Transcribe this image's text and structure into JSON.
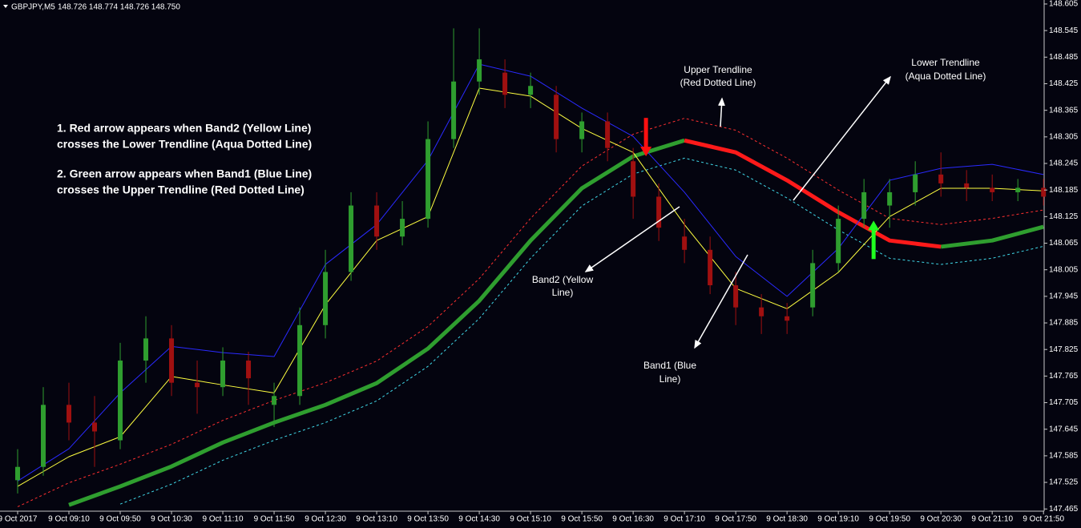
{
  "chart_data": {
    "type": "candlestick",
    "symbol": "GBPJPY,M5",
    "quote": "148.726 148.774 148.726 148.750",
    "ylim": [
      147.46,
      148.614
    ],
    "yticks": [
      148.605,
      148.545,
      148.485,
      148.425,
      148.365,
      148.305,
      148.245,
      148.185,
      148.125,
      148.065,
      148.005,
      147.945,
      147.885,
      147.825,
      147.765,
      147.705,
      147.645,
      147.585,
      147.525,
      147.465
    ],
    "xlim": [
      -2.75,
      160.1
    ],
    "xticks": [
      {
        "value": 0,
        "label": "9 Oct 2017"
      },
      {
        "value": 8,
        "label": "9 Oct 09:10"
      },
      {
        "value": 16,
        "label": "9 Oct 09:50"
      },
      {
        "value": 24,
        "label": "9 Oct 10:30"
      },
      {
        "value": 32,
        "label": "9 Oct 11:10"
      },
      {
        "value": 40,
        "label": "9 Oct 11:50"
      },
      {
        "value": 48,
        "label": "9 Oct 12:30"
      },
      {
        "value": 56,
        "label": "9 Oct 13:10"
      },
      {
        "value": 64,
        "label": "9 Oct 13:50"
      },
      {
        "value": 72,
        "label": "9 Oct 14:30"
      },
      {
        "value": 80,
        "label": "9 Oct 15:10"
      },
      {
        "value": 88,
        "label": "9 Oct 15:50"
      },
      {
        "value": 96,
        "label": "9 Oct 16:30"
      },
      {
        "value": 104,
        "label": "9 Oct 17:10"
      },
      {
        "value": 112,
        "label": "9 Oct 17:50"
      },
      {
        "value": 120,
        "label": "9 Oct 18:30"
      },
      {
        "value": 128,
        "label": "9 Oct 19:10"
      },
      {
        "value": 136,
        "label": "9 Oct 19:50"
      },
      {
        "value": 144,
        "label": "9 Oct 20:30"
      },
      {
        "value": 152,
        "label": "9 Oct 21:10"
      },
      {
        "value": 160,
        "label": "9 Oct 21:50"
      }
    ],
    "candles": {
      "up_color": "#2f9e2f",
      "down_color": "#a01010",
      "x": [
        0,
        4,
        8,
        12,
        16,
        20,
        24,
        28,
        32,
        36,
        40,
        44,
        48,
        52,
        56,
        60,
        64,
        68,
        72,
        76,
        80,
        84,
        88,
        92,
        96,
        100,
        104,
        108,
        112,
        116,
        120,
        124,
        128,
        132,
        136,
        140,
        144,
        148,
        152,
        156,
        160
      ],
      "open": [
        147.53,
        147.56,
        147.7,
        147.66,
        147.62,
        147.8,
        147.85,
        147.75,
        147.74,
        147.8,
        147.7,
        147.72,
        147.88,
        148.0,
        148.15,
        148.08,
        148.12,
        148.3,
        148.43,
        148.45,
        148.4,
        148.4,
        148.3,
        148.34,
        148.25,
        148.17,
        148.08,
        148.05,
        147.97,
        147.92,
        147.9,
        147.92,
        148.02,
        148.12,
        148.15,
        148.18,
        148.22,
        148.2,
        148.19,
        148.18,
        148.19
      ],
      "high": [
        147.6,
        147.74,
        147.75,
        147.72,
        147.84,
        147.9,
        147.88,
        147.8,
        147.83,
        147.82,
        147.75,
        147.92,
        148.05,
        148.18,
        148.18,
        148.16,
        148.34,
        148.55,
        148.55,
        148.48,
        148.45,
        148.42,
        148.36,
        148.36,
        148.28,
        148.2,
        148.12,
        148.08,
        148.0,
        147.95,
        147.93,
        148.05,
        148.15,
        148.21,
        148.21,
        148.25,
        148.27,
        148.23,
        148.22,
        148.21,
        148.21
      ],
      "low": [
        147.5,
        147.54,
        147.62,
        147.56,
        147.6,
        147.75,
        147.72,
        147.68,
        147.72,
        147.7,
        147.65,
        147.7,
        147.85,
        147.98,
        148.05,
        148.06,
        148.1,
        148.28,
        148.4,
        148.37,
        148.37,
        148.27,
        148.27,
        148.25,
        148.12,
        148.07,
        148.02,
        147.95,
        147.88,
        147.86,
        147.86,
        147.9,
        148.0,
        148.1,
        148.1,
        148.15,
        148.17,
        148.16,
        148.16,
        148.16,
        148.15
      ],
      "close": [
        147.56,
        147.7,
        147.66,
        147.64,
        147.8,
        147.85,
        147.75,
        147.74,
        147.8,
        147.76,
        147.72,
        147.88,
        148.0,
        148.15,
        148.08,
        148.12,
        148.3,
        148.43,
        148.48,
        148.4,
        148.42,
        148.3,
        148.34,
        148.28,
        148.17,
        148.1,
        148.05,
        147.97,
        147.92,
        147.9,
        147.89,
        148.02,
        148.12,
        148.18,
        148.18,
        148.22,
        148.2,
        148.19,
        148.18,
        148.19,
        148.17
      ]
    },
    "x": [
      0,
      8,
      16,
      24,
      32,
      40,
      48,
      56,
      64,
      72,
      80,
      88,
      96,
      104,
      112,
      120,
      128,
      136,
      144,
      152,
      160
    ],
    "series": [
      {
        "color": "#ff3030",
        "style": "dotted",
        "width": 1,
        "values": [
          147.47,
          147.524,
          147.566,
          147.611,
          147.665,
          147.71,
          147.75,
          147.799,
          147.877,
          147.985,
          148.121,
          148.239,
          148.311,
          148.347,
          148.32,
          148.257,
          148.185,
          148.121,
          148.107,
          148.121,
          148.14
        ]
      },
      {
        "color": "#40d8e8",
        "style": "dotted",
        "width": 1,
        "values": [
          null,
          null,
          147.476,
          147.521,
          147.575,
          147.62,
          147.66,
          147.709,
          147.787,
          147.895,
          148.031,
          148.149,
          148.221,
          148.257,
          148.23,
          148.167,
          148.095,
          148.031,
          148.017,
          148.031,
          148.058
        ]
      },
      {
        "color": "#2f9e2f",
        "style": "solid",
        "width": 5,
        "values": [
          null,
          147.474,
          147.516,
          147.561,
          147.615,
          147.66,
          147.7,
          147.749,
          147.827,
          147.935,
          148.071,
          148.189,
          148.261,
          148.297,
          null,
          null,
          null,
          null,
          148.057,
          148.071,
          148.102
        ]
      },
      {
        "color": "#ff1a1a",
        "style": "solid",
        "width": 5,
        "values": [
          null,
          null,
          null,
          null,
          null,
          null,
          null,
          null,
          null,
          null,
          null,
          null,
          null,
          148.297,
          148.27,
          148.207,
          148.135,
          148.071,
          148.057,
          null,
          null
        ]
      },
      {
        "color": "#2a2aff",
        "style": "solid",
        "width": 1,
        "values": [
          147.528,
          147.601,
          147.727,
          147.832,
          147.818,
          147.809,
          148.017,
          148.107,
          148.252,
          148.469,
          148.442,
          148.37,
          148.306,
          148.18,
          148.035,
          147.945,
          148.053,
          148.207,
          148.234,
          148.243,
          148.22
        ]
      },
      {
        "color": "#ffff40",
        "style": "solid",
        "width": 1,
        "values": [
          147.516,
          147.583,
          147.628,
          147.764,
          147.745,
          147.727,
          147.926,
          148.071,
          148.125,
          148.415,
          148.397,
          148.324,
          148.27,
          148.107,
          147.963,
          147.917,
          147.999,
          148.125,
          148.189,
          148.189,
          148.183
        ]
      }
    ],
    "signals": [
      {
        "x": 98,
        "y": 148.261,
        "color": "#ff1010",
        "direction": "down"
      },
      {
        "x": 133.5,
        "y": 148.116,
        "color": "#20ff20",
        "direction": "up"
      }
    ],
    "notes": [
      "1. Red arrow appears when Band2 (Yellow Line)",
      "crosses the Lower Trendline (Aqua Dotted Line)",
      "2. Green arrow appears when Band1 (Blue Line)",
      "crosses the Upper Trendline (Red Dotted Line)"
    ],
    "labels": {
      "upper": [
        "Upper Trendline",
        "(Red Dotted Line)"
      ],
      "lower": [
        "Lower Trendline",
        "(Aqua Dotted Line)"
      ],
      "band2": [
        "Band2 (Yellow",
        "Line)"
      ],
      "band1": [
        "Band1 (Blue",
        "Line)"
      ]
    }
  }
}
